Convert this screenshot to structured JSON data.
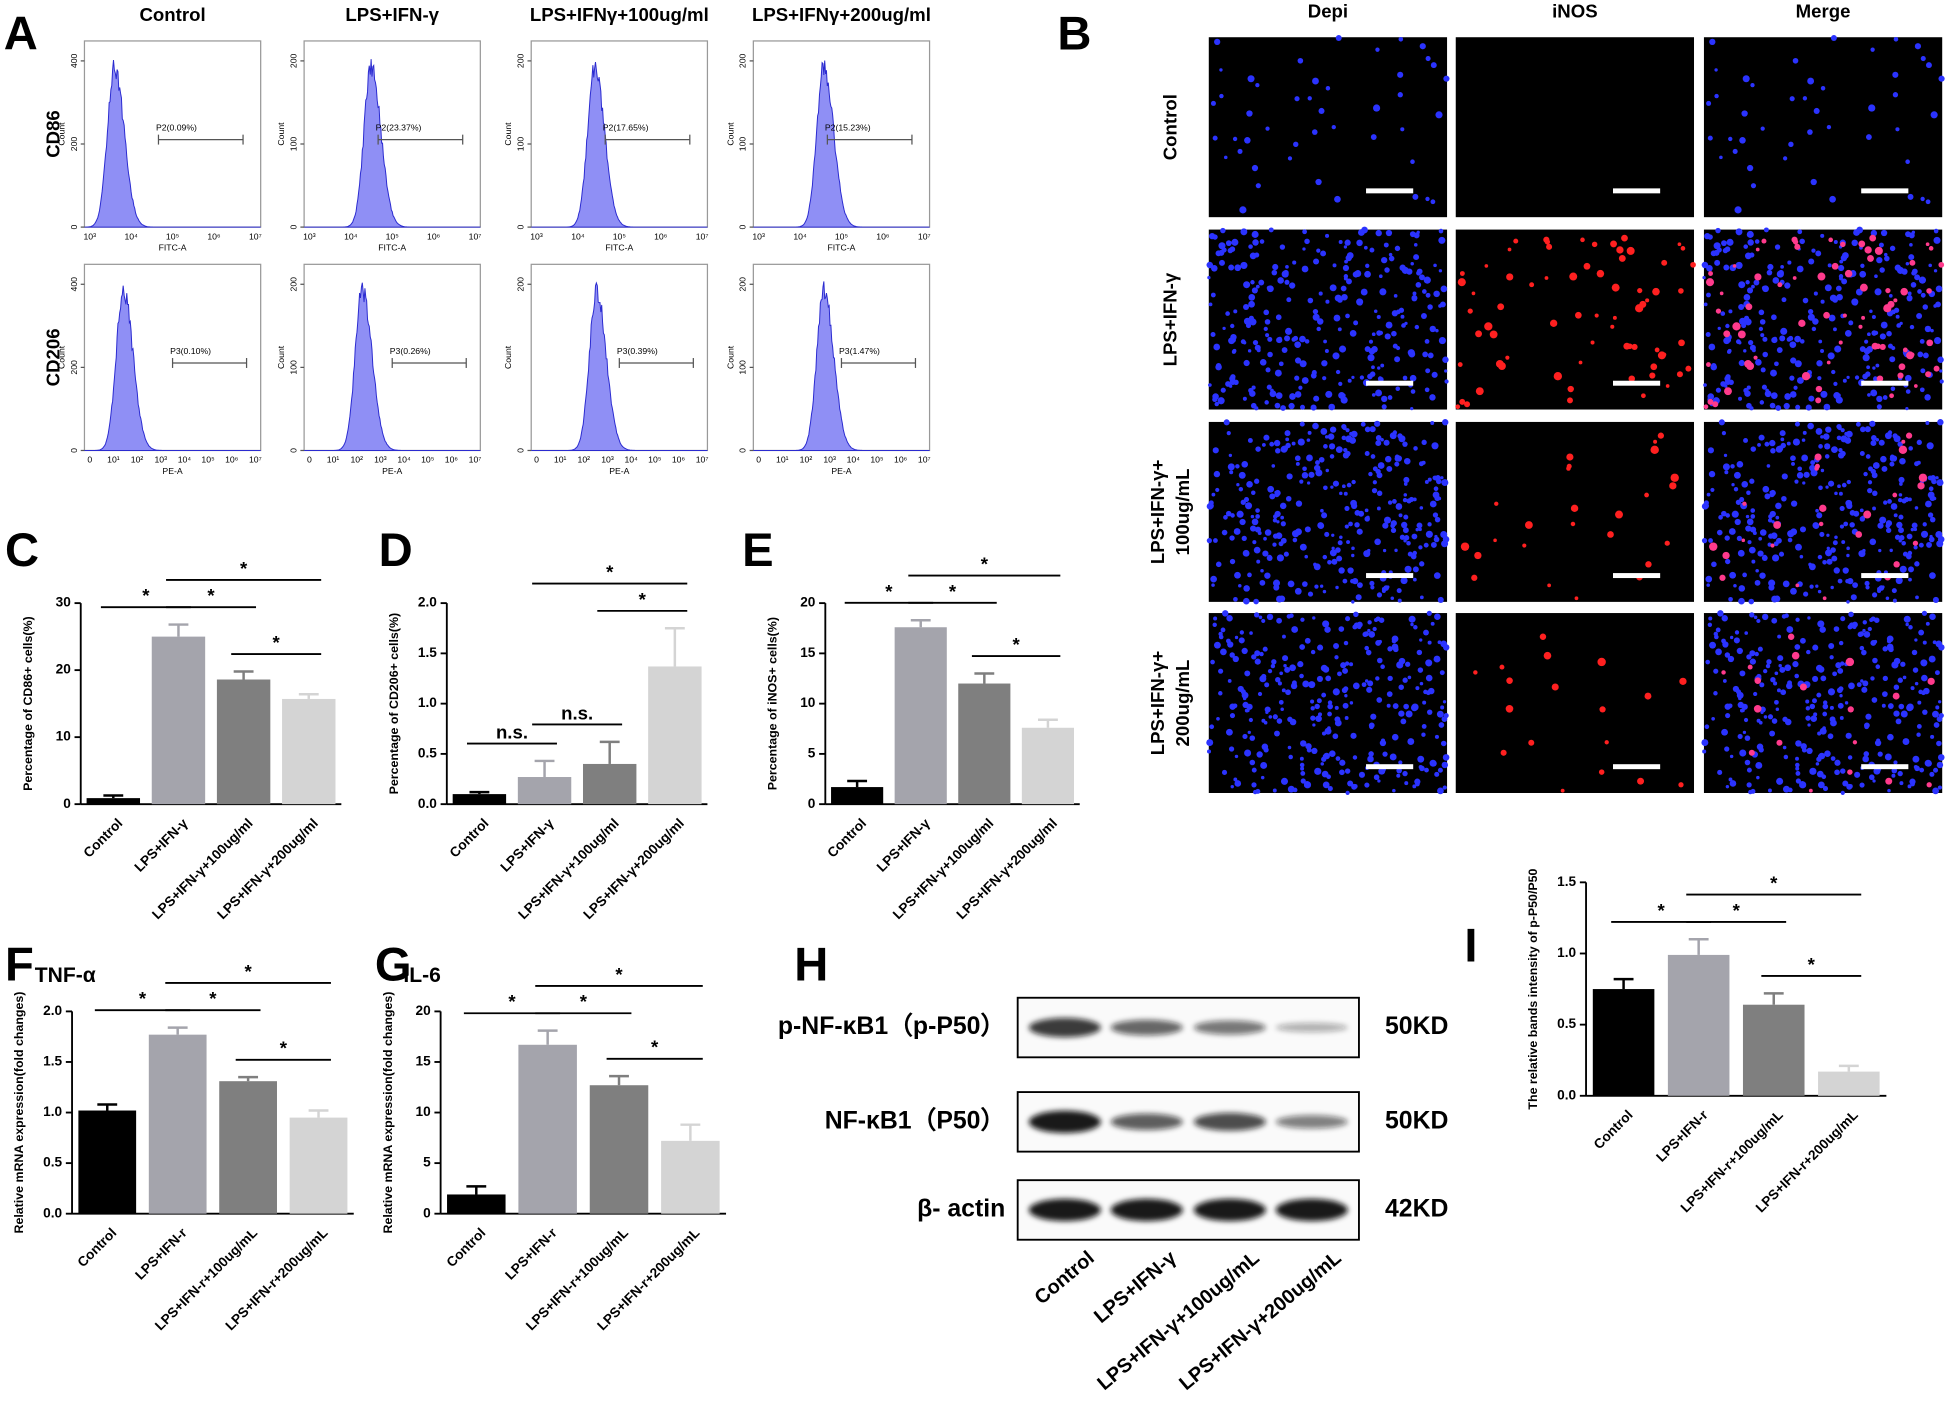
{
  "flow_cytometry": {
    "label": "A",
    "columns": [
      "Control",
      "LPS+IFN-γ",
      "LPS+IFNγ+100ug/ml",
      "LPS+IFNγ+200ug/ml"
    ],
    "y_label": "Count",
    "rows": [
      {
        "name": "CD86",
        "x_label": "FITC-A",
        "x_ticks": [
          "10³",
          "10⁴",
          "10⁵",
          "10⁶",
          "10⁷"
        ],
        "cells": [
          {
            "y_ticks": [
              400,
              200,
              0
            ],
            "gate": "P2(0.09%)"
          },
          {
            "y_ticks": [
              200,
              100,
              0
            ],
            "gate": "P2(23.37%)"
          },
          {
            "y_ticks": [
              200,
              100,
              0
            ],
            "gate": "P2(17.65%)"
          },
          {
            "y_ticks": [
              200,
              100,
              0
            ],
            "gate": "P2(15.23%)"
          }
        ]
      },
      {
        "name": "CD206",
        "x_label": "PE-A",
        "x_ticks": [
          "0",
          "10¹",
          "10²",
          "10³",
          "10⁴",
          "10⁵",
          "10⁶",
          "10⁷"
        ],
        "cells": [
          {
            "y_ticks": [
              400,
              200,
              0
            ],
            "gate": "P3(0.10%)"
          },
          {
            "y_ticks": [
              200,
              100,
              0
            ],
            "gate": "P3(0.26%)"
          },
          {
            "y_ticks": [
              200,
              0
            ],
            "gate": "P3(0.39%)"
          },
          {
            "y_ticks": [
              200,
              100,
              0
            ],
            "gate": "P3(1.47%)"
          }
        ]
      }
    ]
  },
  "microscopy": {
    "label": "B",
    "columns": [
      "Depi",
      "iNOS",
      "Merge"
    ],
    "rows": [
      [
        "Control"
      ],
      [
        "LPS+IFN-γ"
      ],
      [
        "LPS+IFN-γ+",
        "100ug/mL"
      ],
      [
        "LPS+IFN-γ+",
        "200ug/mL"
      ]
    ]
  },
  "western_blot": {
    "label": "H",
    "rows": [
      {
        "name": "p-NF-κB1（p-P50）",
        "size": "50KD"
      },
      {
        "name": "NF-κB1（P50）",
        "size": "50KD"
      },
      {
        "name": "β- actin",
        "size": "42KD"
      }
    ],
    "lanes": [
      "Control",
      "LPS+IFN-γ",
      "LPS+IFN-γ+100ug/mL",
      "LPS+IFN-γ+200ug/mL"
    ]
  },
  "chart_data": [
    {
      "type": "bar",
      "label": "C",
      "ylabel": "Percentage of CD86+ cells(%)",
      "categories": [
        "Control",
        "LPS+IFN-γ",
        "LPS+IFN-γ+100ug/ml",
        "LPS+IFN-γ+200ug/ml"
      ],
      "values": [
        0.9,
        25,
        18.6,
        15.7
      ],
      "errors": [
        0.4,
        1.8,
        1.2,
        0.7
      ],
      "colors": [
        "#000000",
        "#a4a4ac",
        "#7f7f7f",
        "#d4d4d4"
      ],
      "ylim": [
        0,
        30
      ],
      "yticks": [
        0,
        10,
        20,
        30
      ],
      "annotations": [
        {
          "between": [
            "Control",
            "LPS+IFN-γ"
          ],
          "text": "*"
        },
        {
          "between": [
            "LPS+IFN-γ",
            "LPS+IFN-γ+100ug/ml"
          ],
          "text": "*"
        },
        {
          "between": [
            "LPS+IFN-γ+100ug/ml",
            "LPS+IFN-γ+200ug/ml"
          ],
          "text": "*"
        },
        {
          "between": [
            "LPS+IFN-γ",
            "LPS+IFN-γ+200ug/ml"
          ],
          "text": "*"
        }
      ]
    },
    {
      "type": "bar",
      "label": "D",
      "ylabel": "Percentage of CD206+ cells(%)",
      "categories": [
        "Control",
        "LPS+IFN-γ",
        "LPS+IFN-γ+100ug/ml",
        "LPS+IFN-γ+200ug/ml"
      ],
      "values": [
        0.1,
        0.27,
        0.4,
        1.37
      ],
      "errors": [
        0.02,
        0.16,
        0.22,
        0.38
      ],
      "colors": [
        "#000000",
        "#a4a4ac",
        "#7f7f7f",
        "#d4d4d4"
      ],
      "ylim": [
        0,
        2
      ],
      "yticks": [
        {
          "value": 0,
          "label": "0.0"
        },
        0.5,
        {
          "value": 1,
          "label": "1.0"
        },
        1.5,
        {
          "value": 2,
          "label": "2.0"
        }
      ],
      "annotations": [
        {
          "between": [
            "Control",
            "LPS+IFN-γ"
          ],
          "text": "n.s."
        },
        {
          "between": [
            "LPS+IFN-γ",
            "LPS+IFN-γ+100ug/ml"
          ],
          "text": "n.s."
        },
        {
          "between": [
            "LPS+IFN-γ+100ug/ml",
            "LPS+IFN-γ+200ug/ml"
          ],
          "text": "*"
        },
        {
          "between": [
            "LPS+IFN-γ",
            "LPS+IFN-γ+200ug/ml"
          ],
          "text": "*"
        }
      ]
    },
    {
      "type": "bar",
      "label": "E",
      "ylabel": "Percentage of iNOS+ cells(%)",
      "categories": [
        "Control",
        "LPS+IFN-γ",
        "LPS+IFN-γ+100ug/ml",
        "LPS+IFN-γ+200ug/ml"
      ],
      "values": [
        1.7,
        17.6,
        12,
        7.6
      ],
      "errors": [
        0.6,
        0.7,
        1,
        0.8
      ],
      "colors": [
        "#000000",
        "#a4a4ac",
        "#7f7f7f",
        "#d4d4d4"
      ],
      "ylim": [
        0,
        20
      ],
      "yticks": [
        0,
        5,
        10,
        15,
        20
      ],
      "annotations": [
        {
          "between": [
            "Control",
            "LPS+IFN-γ"
          ],
          "text": "*"
        },
        {
          "between": [
            "LPS+IFN-γ",
            "LPS+IFN-γ+100ug/ml"
          ],
          "text": "*"
        },
        {
          "between": [
            "LPS+IFN-γ+100ug/ml",
            "LPS+IFN-γ+200ug/ml"
          ],
          "text": "*"
        },
        {
          "between": [
            "LPS+IFN-γ",
            "LPS+IFN-γ+200ug/ml"
          ],
          "text": "*"
        }
      ]
    },
    {
      "type": "bar",
      "label": "F",
      "title": "TNF-α",
      "ylabel": "Relative mRNA expression(fold changes)",
      "categories": [
        "Control",
        "LPS+IFN-r",
        "LPS+IFN-r+100ug/mL",
        "LPS+IFN-r+200ug/mL"
      ],
      "values": [
        1.02,
        1.77,
        1.31,
        0.95
      ],
      "errors": [
        0.06,
        0.07,
        0.04,
        0.07
      ],
      "colors": [
        "#000000",
        "#a4a4ac",
        "#7f7f7f",
        "#d4d4d4"
      ],
      "ylim": [
        0,
        2
      ],
      "yticks": [
        {
          "value": 0,
          "label": "0.0"
        },
        0.5,
        {
          "value": 1,
          "label": "1.0"
        },
        1.5,
        {
          "value": 2,
          "label": "2.0"
        }
      ],
      "annotations": [
        {
          "between": [
            "Control",
            "LPS+IFN-r"
          ],
          "text": "*"
        },
        {
          "between": [
            "LPS+IFN-r",
            "LPS+IFN-r+100ug/mL"
          ],
          "text": "*"
        },
        {
          "between": [
            "LPS+IFN-r+100ug/mL",
            "LPS+IFN-r+200ug/mL"
          ],
          "text": "*"
        },
        {
          "between": [
            "LPS+IFN-r",
            "LPS+IFN-r+200ug/mL"
          ],
          "text": "*"
        }
      ]
    },
    {
      "type": "bar",
      "label": "G",
      "title": "IL-6",
      "ylabel": "Relative mRNA expression(fold changes)",
      "categories": [
        "Control",
        "LPS+IFN-r",
        "LPS+IFN-r+100ug/mL",
        "LPS+IFN-r+200ug/mL"
      ],
      "values": [
        1.9,
        16.7,
        12.7,
        7.2
      ],
      "errors": [
        0.8,
        1.4,
        0.9,
        1.6
      ],
      "colors": [
        "#000000",
        "#a4a4ac",
        "#7f7f7f",
        "#d4d4d4"
      ],
      "ylim": [
        0,
        20
      ],
      "yticks": [
        0,
        5,
        10,
        15,
        20
      ],
      "annotations": [
        {
          "between": [
            "Control",
            "LPS+IFN-r"
          ],
          "text": "*"
        },
        {
          "between": [
            "LPS+IFN-r",
            "LPS+IFN-r+100ug/mL"
          ],
          "text": "*"
        },
        {
          "between": [
            "LPS+IFN-r+100ug/mL",
            "LPS+IFN-r+200ug/mL"
          ],
          "text": "*"
        },
        {
          "between": [
            "LPS+IFN-r",
            "LPS+IFN-r+200ug/mL"
          ],
          "text": "*"
        }
      ]
    },
    {
      "type": "bar",
      "label": "I",
      "ylabel": "The relative bands intensity of p-P50/P50",
      "categories": [
        "Control",
        "LPS+IFN-r",
        "LPS+IFN-r+100ug/mL",
        "LPS+IFN-r+200ug/mL"
      ],
      "values": [
        0.75,
        0.99,
        0.64,
        0.17
      ],
      "errors": [
        0.07,
        0.11,
        0.08,
        0.04
      ],
      "colors": [
        "#000000",
        "#a4a4ac",
        "#7f7f7f",
        "#d4d4d4"
      ],
      "ylim": [
        0,
        1.5
      ],
      "yticks": [
        {
          "value": 0,
          "label": "0.0"
        },
        0.5,
        {
          "value": 1,
          "label": "1.0"
        },
        1.5
      ],
      "annotations": [
        {
          "between": [
            "Control",
            "LPS+IFN-r"
          ],
          "text": "*"
        },
        {
          "between": [
            "LPS+IFN-r",
            "LPS+IFN-r+100ug/mL"
          ],
          "text": "*"
        },
        {
          "between": [
            "LPS+IFN-r+100ug/mL",
            "LPS+IFN-r+200ug/mL"
          ],
          "text": "*"
        },
        {
          "between": [
            "LPS+IFN-r",
            "LPS+IFN-r+200ug/mL"
          ],
          "text": "*"
        }
      ]
    }
  ]
}
